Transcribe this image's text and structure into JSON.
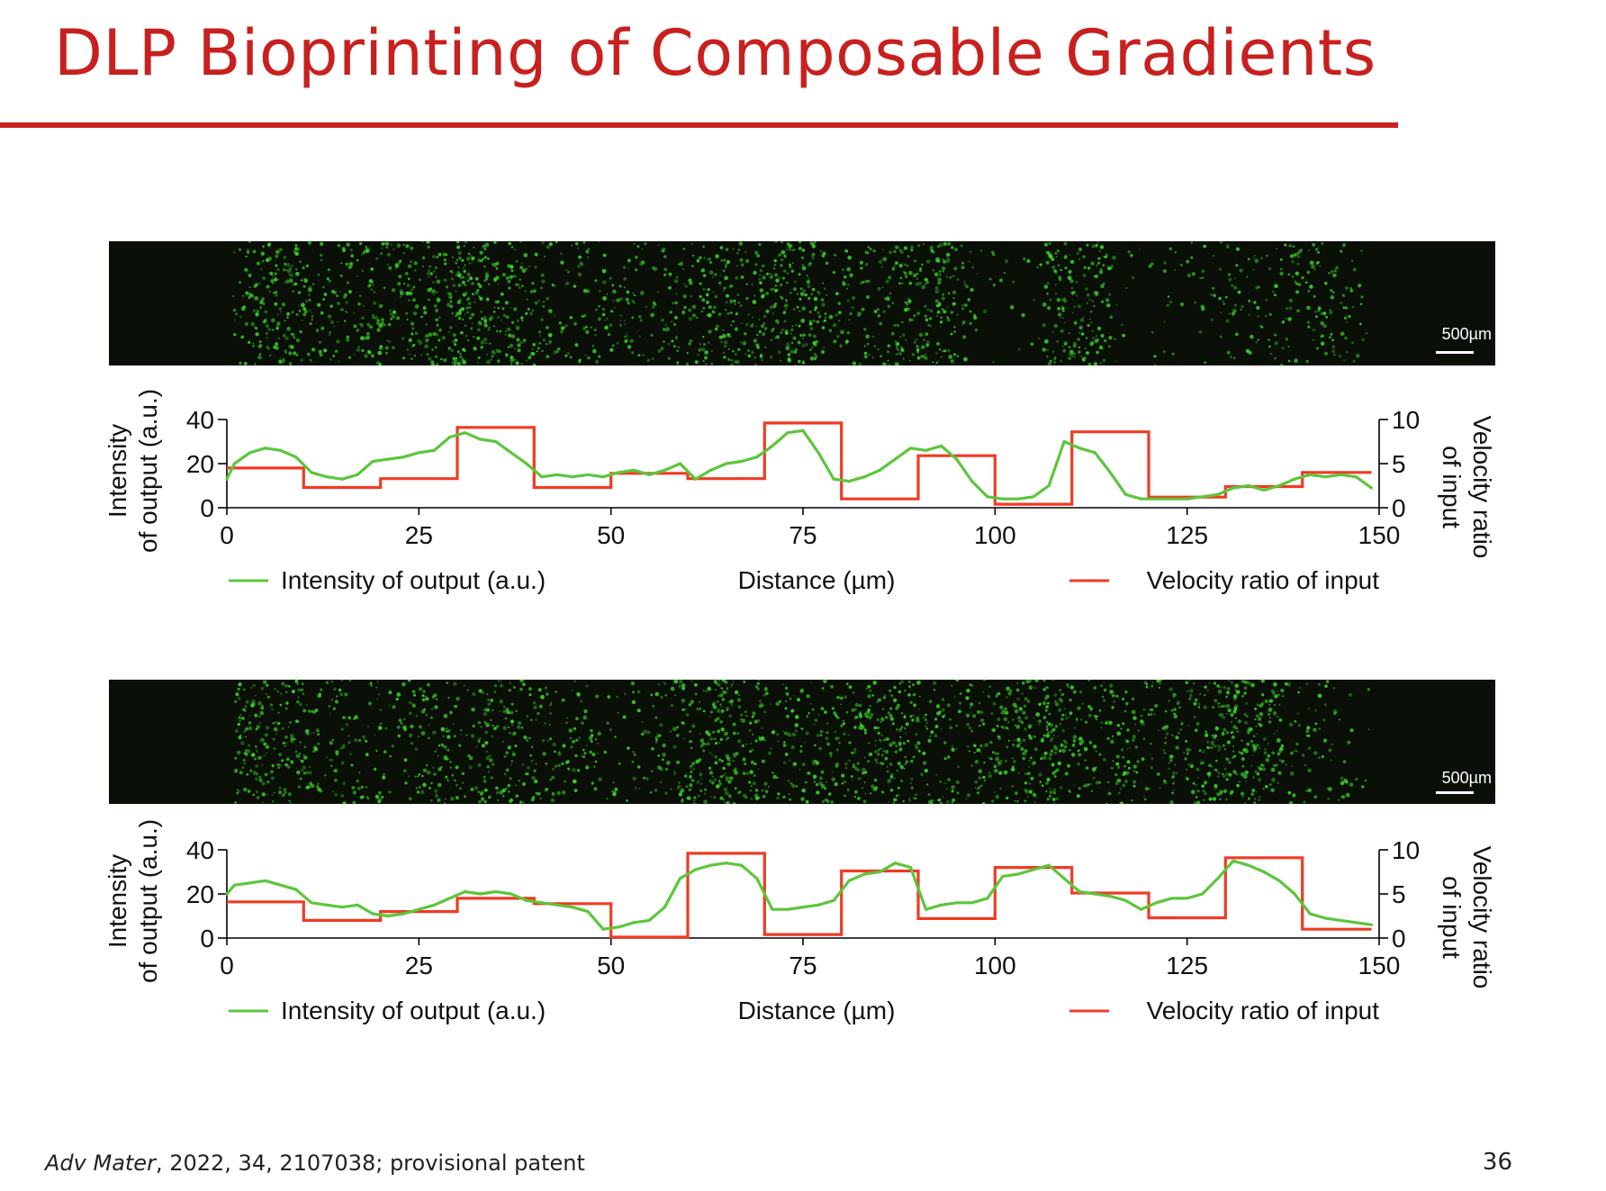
{
  "slide": {
    "title": "DLP Bioprinting of Composable Gradients",
    "citation_journal": "Adv Mater",
    "citation_rest": ", 2022, 34, 2107038; provisional patent",
    "page_number": "36",
    "scale_bar_label": "500µm"
  },
  "colors": {
    "title": "#c8201e",
    "intensity_line": "#5cc63b",
    "velocity_line": "#ef3b24",
    "microscopy_bg": "#0a0f07",
    "cells": "#3ccf2a"
  },
  "chart_data": [
    {
      "type": "line",
      "xlabel": "Distance (µm)",
      "ylabel": "Intensity of output (a.u.)",
      "y2label": "Velocity ratio of input",
      "xlim": [
        0,
        150
      ],
      "ylim": [
        0,
        40
      ],
      "y2lim": [
        0,
        10
      ],
      "xticks": [
        0,
        25,
        50,
        75,
        100,
        125,
        150
      ],
      "yticks": [
        0,
        20,
        40
      ],
      "y2ticks": [
        0,
        5,
        10
      ],
      "legend": [
        "Intensity of output (a.u.)",
        "Velocity ratio of input"
      ],
      "series": [
        {
          "name": "Intensity of output (a.u.)",
          "axis": "left",
          "x": [
            0,
            1,
            3,
            5,
            7,
            9,
            11,
            13,
            15,
            17,
            19,
            21,
            23,
            25,
            27,
            29,
            31,
            33,
            35,
            37,
            39,
            41,
            43,
            45,
            47,
            49,
            51,
            53,
            55,
            57,
            59,
            61,
            63,
            65,
            67,
            69,
            71,
            73,
            75,
            77,
            79,
            81,
            83,
            85,
            87,
            89,
            91,
            93,
            95,
            97,
            99,
            101,
            103,
            105,
            107,
            109,
            111,
            113,
            115,
            117,
            119,
            121,
            123,
            125,
            127,
            129,
            131,
            133,
            135,
            137,
            139,
            141,
            143,
            145,
            147,
            149
          ],
          "y": [
            13,
            20,
            25,
            27,
            26,
            23,
            16,
            14,
            13,
            15,
            21,
            22,
            23,
            25,
            26,
            32,
            34,
            31,
            30,
            25,
            20,
            14,
            15,
            14,
            15,
            14,
            16,
            17,
            15,
            17,
            20,
            13,
            17,
            20,
            21,
            23,
            28,
            34,
            35,
            25,
            13,
            12,
            14,
            17,
            22,
            27,
            26,
            28,
            22,
            12,
            5,
            4,
            4,
            5,
            10,
            30,
            27,
            25,
            16,
            6,
            4,
            4,
            4,
            4,
            5,
            6,
            9,
            10,
            8,
            10,
            13,
            15,
            14,
            15,
            14,
            9
          ]
        },
        {
          "name": "Velocity ratio of input",
          "axis": "right",
          "step": true,
          "x": [
            0,
            10,
            20,
            30,
            40,
            50,
            60,
            70,
            80,
            90,
            100,
            110,
            120,
            130,
            140,
            149
          ],
          "y": [
            4.5,
            2.3,
            3.3,
            9.1,
            2.3,
            3.9,
            3.3,
            9.6,
            1.0,
            5.9,
            0.4,
            8.6,
            1.2,
            2.4,
            4.0,
            4.0
          ]
        }
      ]
    },
    {
      "type": "line",
      "xlabel": "Distance (µm)",
      "ylabel": "Intensity of output (a.u.)",
      "y2label": "Velocity ratio of input",
      "xlim": [
        0,
        150
      ],
      "ylim": [
        0,
        40
      ],
      "y2lim": [
        0,
        10
      ],
      "xticks": [
        0,
        25,
        50,
        75,
        100,
        125,
        150
      ],
      "yticks": [
        0,
        20,
        40
      ],
      "y2ticks": [
        0,
        5,
        10
      ],
      "legend": [
        "Intensity of output (a.u.)",
        "Velocity ratio of input"
      ],
      "series": [
        {
          "name": "Intensity of output (a.u.)",
          "axis": "left",
          "x": [
            0,
            1,
            3,
            5,
            7,
            9,
            11,
            13,
            15,
            17,
            19,
            21,
            23,
            25,
            27,
            29,
            31,
            33,
            35,
            37,
            39,
            41,
            43,
            45,
            47,
            49,
            51,
            53,
            55,
            57,
            59,
            61,
            63,
            65,
            67,
            69,
            71,
            73,
            75,
            77,
            79,
            81,
            83,
            85,
            87,
            89,
            91,
            93,
            95,
            97,
            99,
            101,
            103,
            105,
            107,
            109,
            111,
            113,
            115,
            117,
            119,
            121,
            123,
            125,
            127,
            129,
            131,
            133,
            135,
            137,
            139,
            141,
            143,
            145,
            147,
            149
          ],
          "y": [
            20,
            24,
            25,
            26,
            24,
            22,
            16,
            15,
            14,
            15,
            11,
            10,
            11,
            13,
            15,
            18,
            21,
            20,
            21,
            20,
            17,
            16,
            15,
            14,
            12,
            4,
            5,
            7,
            8,
            14,
            27,
            31,
            33,
            34,
            33,
            27,
            13,
            13,
            14,
            15,
            17,
            26,
            29,
            30,
            34,
            32,
            13,
            15,
            16,
            16,
            18,
            28,
            29,
            31,
            33,
            27,
            21,
            20,
            19,
            17,
            13,
            16,
            18,
            18,
            20,
            27,
            35,
            33,
            30,
            26,
            20,
            11,
            9,
            8,
            7,
            6
          ]
        },
        {
          "name": "Velocity ratio of input",
          "axis": "right",
          "step": true,
          "x": [
            0,
            10,
            20,
            30,
            40,
            50,
            60,
            70,
            80,
            90,
            100,
            110,
            120,
            130,
            140,
            149
          ],
          "y": [
            4.1,
            2.0,
            3.0,
            4.5,
            3.9,
            0.1,
            9.6,
            0.4,
            7.6,
            2.2,
            8.0,
            5.1,
            2.3,
            9.1,
            1.0,
            1.0
          ]
        }
      ]
    }
  ]
}
